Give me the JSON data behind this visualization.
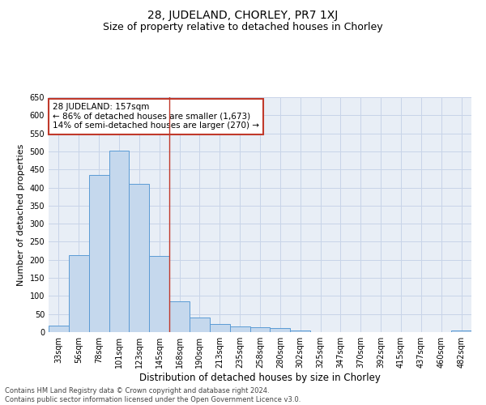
{
  "title": "28, JUDELAND, CHORLEY, PR7 1XJ",
  "subtitle": "Size of property relative to detached houses in Chorley",
  "xlabel": "Distribution of detached houses by size in Chorley",
  "ylabel": "Number of detached properties",
  "categories": [
    "33sqm",
    "56sqm",
    "78sqm",
    "101sqm",
    "123sqm",
    "145sqm",
    "168sqm",
    "190sqm",
    "213sqm",
    "235sqm",
    "258sqm",
    "280sqm",
    "302sqm",
    "325sqm",
    "347sqm",
    "370sqm",
    "392sqm",
    "415sqm",
    "437sqm",
    "460sqm",
    "482sqm"
  ],
  "values": [
    17,
    212,
    435,
    503,
    410,
    210,
    85,
    40,
    22,
    16,
    14,
    11,
    5,
    0,
    0,
    0,
    0,
    0,
    0,
    0,
    5
  ],
  "bar_color": "#c5d8ed",
  "bar_edge_color": "#5b9bd5",
  "grid_color": "#c8d4e8",
  "background_color": "#e8eef6",
  "annotation_box_text": "28 JUDELAND: 157sqm\n← 86% of detached houses are smaller (1,673)\n14% of semi-detached houses are larger (270) →",
  "annotation_box_color": "#c0392b",
  "vline_x_index": 5.5,
  "vline_color": "#c0392b",
  "ylim": [
    0,
    650
  ],
  "yticks": [
    0,
    50,
    100,
    150,
    200,
    250,
    300,
    350,
    400,
    450,
    500,
    550,
    600,
    650
  ],
  "footnote": "Contains HM Land Registry data © Crown copyright and database right 2024.\nContains public sector information licensed under the Open Government Licence v3.0.",
  "title_fontsize": 10,
  "subtitle_fontsize": 9,
  "xlabel_fontsize": 8.5,
  "ylabel_fontsize": 8,
  "tick_fontsize": 7,
  "annotation_fontsize": 7.5,
  "footnote_fontsize": 6
}
